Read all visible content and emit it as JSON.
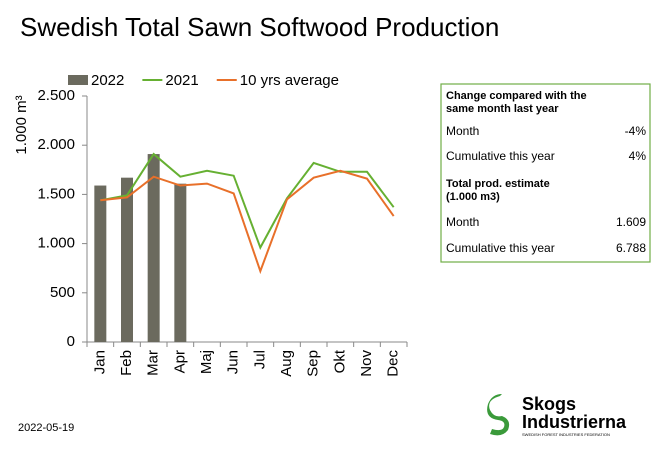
{
  "chart_data": {
    "type": "combo",
    "title": "Swedish Total Sawn Softwood Production",
    "y_label": "1.000 m³",
    "categories": [
      "Jan",
      "Feb",
      "Mar",
      "Apr",
      "Maj",
      "Jun",
      "Jul",
      "Aug",
      "Sep",
      "Okt",
      "Nov",
      "Dec"
    ],
    "series": [
      {
        "name": "2022",
        "type": "bar",
        "color": "#6b6a5e",
        "values": [
          1590,
          1670,
          1910,
          1609,
          null,
          null,
          null,
          null,
          null,
          null,
          null,
          null
        ]
      },
      {
        "name": "2021",
        "type": "line",
        "color": "#66b032",
        "values": [
          1440,
          1490,
          1910,
          1680,
          1740,
          1690,
          960,
          1460,
          1820,
          1730,
          1730,
          1370
        ]
      },
      {
        "name": "10 yrs average",
        "type": "line",
        "color": "#e8702a",
        "values": [
          1440,
          1470,
          1680,
          1590,
          1610,
          1510,
          720,
          1450,
          1670,
          1740,
          1660,
          1280
        ]
      }
    ],
    "ylim": [
      0,
      2500
    ],
    "yticks": [
      0,
      {
        "value": 500,
        "label": "500"
      },
      {
        "value": 1000,
        "label": "1.000"
      },
      {
        "value": 1500,
        "label": "1.500"
      },
      {
        "value": 2000,
        "label": "2.000"
      },
      {
        "value": 2500,
        "label": "2.500"
      }
    ],
    "legend": "top"
  },
  "info_box": {
    "heading": [
      "Change compared with the",
      "same month last year"
    ],
    "rows1": [
      [
        "Month",
        "-4%"
      ],
      [
        "Cumulative this year",
        "4%"
      ]
    ],
    "heading2": [
      "Total prod. estimate",
      "(1.000 m3)"
    ],
    "rows2": [
      [
        "Month",
        "1.609"
      ],
      [
        "Cumulative this year",
        "6.788"
      ]
    ]
  },
  "footer": {
    "date": "2022-05-19",
    "logo": [
      "Skogs",
      "Industrierna",
      "SWEDISH FOREST INDUSTRIES FEDERATION"
    ]
  }
}
